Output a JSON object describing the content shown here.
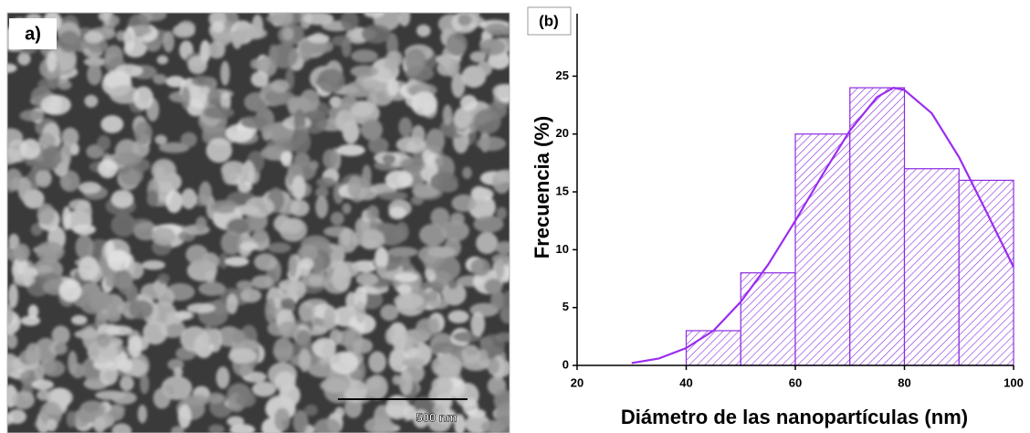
{
  "panel_a": {
    "label": "a)",
    "scale_bar": "500 nm"
  },
  "chart_data": {
    "type": "histogram",
    "panel_label": "(b)",
    "x_label": "Diámetro de las nanopartículas (nm)",
    "y_label": "Frecuencia (%)",
    "bins": [
      40,
      50,
      60,
      70,
      80,
      90,
      100
    ],
    "values": [
      3,
      8,
      20,
      24,
      17,
      16
    ],
    "color": "#8b2be0",
    "fit": {
      "color": "#9a2cf0",
      "x": [
        30,
        35,
        40,
        45,
        50,
        55,
        60,
        65,
        70,
        75,
        78,
        80,
        85,
        90,
        95,
        100
      ],
      "values": [
        0.2,
        0.6,
        1.5,
        3,
        5.5,
        8.7,
        12.5,
        16.5,
        20.3,
        23.2,
        24,
        23.8,
        21.8,
        18,
        13.3,
        8.5
      ]
    },
    "xlim": [
      20,
      100
    ],
    "ylim": [
      0,
      30.4
    ],
    "xticks": [
      20,
      40,
      60,
      80,
      100
    ],
    "yticks": [
      0,
      5,
      10,
      15,
      20,
      25
    ]
  }
}
